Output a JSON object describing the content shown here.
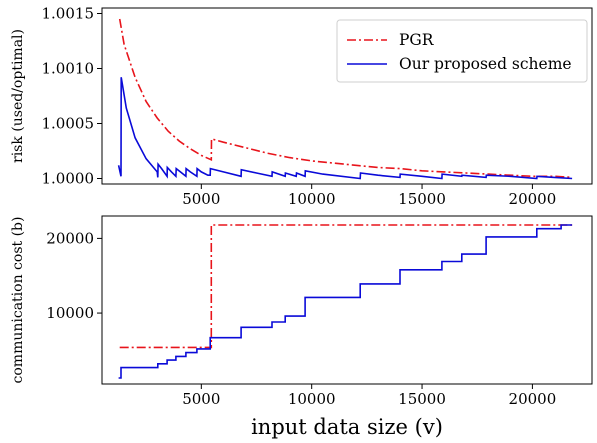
{
  "colors": {
    "pgr": "#e8141b",
    "ours": "#0a0ad8",
    "axis": "#000000",
    "legend_border": "#cfcfcf"
  },
  "chart_data": [
    {
      "type": "line",
      "title": "",
      "ylabel": "risk (used/optimal)",
      "xlabel": "",
      "xlim": [
        500,
        22700
      ],
      "ylim": [
        0.99995,
        1.00155
      ],
      "xticks": [
        5000,
        10000,
        15000,
        20000
      ],
      "xtick_labels": [
        "5000",
        "10000",
        "15000",
        "20000"
      ],
      "yticks": [
        1.0,
        1.0005,
        1.001,
        1.0015
      ],
      "ytick_labels": [
        "1.0000",
        "1.0005",
        "1.0010",
        "1.0015"
      ],
      "grid": false,
      "legend_position": "top-right",
      "series": [
        {
          "name": "PGR",
          "key": "pgr",
          "style": "dashdot",
          "points": [
            [
              1300,
              1.00145
            ],
            [
              1500,
              1.00122
            ],
            [
              2000,
              1.00092
            ],
            [
              2500,
              1.0007
            ],
            [
              3000,
              1.00055
            ],
            [
              3500,
              1.00043
            ],
            [
              4000,
              1.00034
            ],
            [
              4500,
              1.00027
            ],
            [
              5000,
              1.00021
            ],
            [
              5450,
              1.00017
            ],
            [
              5460,
              1.00036
            ],
            [
              6000,
              1.00033
            ],
            [
              7000,
              1.00028
            ],
            [
              8000,
              1.00023
            ],
            [
              9000,
              1.00019
            ],
            [
              10000,
              1.00016
            ],
            [
              11000,
              1.00014
            ],
            [
              12000,
              1.00012
            ],
            [
              13000,
              1.0001
            ],
            [
              14000,
              1.00009
            ],
            [
              15000,
              1.00007
            ],
            [
              16000,
              1.00006
            ],
            [
              17000,
              1.00005
            ],
            [
              18000,
              1.00004
            ],
            [
              19000,
              1.00003
            ],
            [
              20000,
              1.00002
            ],
            [
              21000,
              1.00002
            ],
            [
              21800,
              1.00001
            ]
          ]
        },
        {
          "name": "Our proposed scheme",
          "key": "ours",
          "style": "solid",
          "points": [
            [
              1250,
              1.00012
            ],
            [
              1360,
              1.00002
            ],
            [
              1370,
              1.00092
            ],
            [
              1600,
              1.00064
            ],
            [
              2000,
              1.00037
            ],
            [
              2500,
              1.00018
            ],
            [
              3000,
              1.00006
            ],
            [
              3030,
              1.00001
            ],
            [
              3040,
              1.00013
            ],
            [
              3200,
              1.00009
            ],
            [
              3450,
              1.00002
            ],
            [
              3460,
              1.0001
            ],
            [
              3650,
              1.00006
            ],
            [
              3850,
              1.00002
            ],
            [
              3860,
              1.00009
            ],
            [
              4050,
              1.00006
            ],
            [
              4300,
              1.00002
            ],
            [
              4310,
              1.00009
            ],
            [
              4500,
              1.00006
            ],
            [
              4800,
              1.00002
            ],
            [
              4810,
              1.00009
            ],
            [
              5000,
              1.00006
            ],
            [
              5300,
              1.00003
            ],
            [
              5400,
              1.00003
            ],
            [
              5410,
              1.00009
            ],
            [
              6000,
              1.00006
            ],
            [
              6800,
              1.00002
            ],
            [
              6810,
              1.00008
            ],
            [
              7500,
              1.00005
            ],
            [
              8200,
              1.00002
            ],
            [
              8210,
              1.00006
            ],
            [
              8800,
              1.00002
            ],
            [
              8810,
              1.00005
            ],
            [
              9300,
              1.00002
            ],
            [
              9310,
              1.00005
            ],
            [
              9700,
              1.00002
            ],
            [
              9710,
              1.00007
            ],
            [
              10500,
              1.00004
            ],
            [
              12200,
              1.0
            ],
            [
              12210,
              1.00005
            ],
            [
              13000,
              1.00003
            ],
            [
              14000,
              1.00001
            ],
            [
              14010,
              1.00004
            ],
            [
              15000,
              1.00002
            ],
            [
              15900,
              1.0
            ],
            [
              15910,
              1.00004
            ],
            [
              16800,
              1.00002
            ],
            [
              16810,
              1.00003
            ],
            [
              17900,
              1.00001
            ],
            [
              17910,
              1.00003
            ],
            [
              19000,
              1.00002
            ],
            [
              20200,
              1.0
            ],
            [
              20210,
              1.00002
            ],
            [
              21000,
              1.00001
            ],
            [
              21800,
              1.0
            ]
          ]
        }
      ]
    },
    {
      "type": "line",
      "title": "",
      "ylabel": "communication cost (b)",
      "xlabel": "input data size (v)",
      "xlim": [
        500,
        22700
      ],
      "ylim": [
        500,
        23000
      ],
      "xticks": [
        5000,
        10000,
        15000,
        20000
      ],
      "xtick_labels": [
        "5000",
        "10000",
        "15000",
        "20000"
      ],
      "yticks": [
        10000,
        20000
      ],
      "ytick_labels": [
        "10000",
        "20000"
      ],
      "grid": false,
      "series": [
        {
          "name": "PGR",
          "key": "pgr",
          "style": "dashdot",
          "points": [
            [
              1300,
              5400
            ],
            [
              5450,
              5400
            ],
            [
              5450,
              21800
            ],
            [
              21800,
              21800
            ]
          ]
        },
        {
          "name": "Our proposed scheme",
          "key": "ours",
          "style": "solid",
          "points": [
            [
              1250,
              1300
            ],
            [
              1360,
              1300
            ],
            [
              1360,
              2700
            ],
            [
              3030,
              2700
            ],
            [
              3030,
              3200
            ],
            [
              3450,
              3200
            ],
            [
              3450,
              3700
            ],
            [
              3850,
              3700
            ],
            [
              3850,
              4200
            ],
            [
              4300,
              4200
            ],
            [
              4300,
              4700
            ],
            [
              4800,
              4700
            ],
            [
              4800,
              5200
            ],
            [
              5400,
              5200
            ],
            [
              5400,
              6700
            ],
            [
              6800,
              6700
            ],
            [
              6800,
              8100
            ],
            [
              8200,
              8100
            ],
            [
              8200,
              8800
            ],
            [
              8800,
              8800
            ],
            [
              8800,
              9600
            ],
            [
              9700,
              9600
            ],
            [
              9700,
              12100
            ],
            [
              12200,
              12100
            ],
            [
              12200,
              13900
            ],
            [
              14000,
              13900
            ],
            [
              14000,
              15800
            ],
            [
              15900,
              15800
            ],
            [
              15900,
              16900
            ],
            [
              16800,
              16900
            ],
            [
              16800,
              17900
            ],
            [
              17900,
              17900
            ],
            [
              17900,
              20200
            ],
            [
              20200,
              20200
            ],
            [
              20200,
              21300
            ],
            [
              21300,
              21300
            ],
            [
              21300,
              21800
            ],
            [
              21800,
              21800
            ]
          ]
        }
      ]
    }
  ]
}
